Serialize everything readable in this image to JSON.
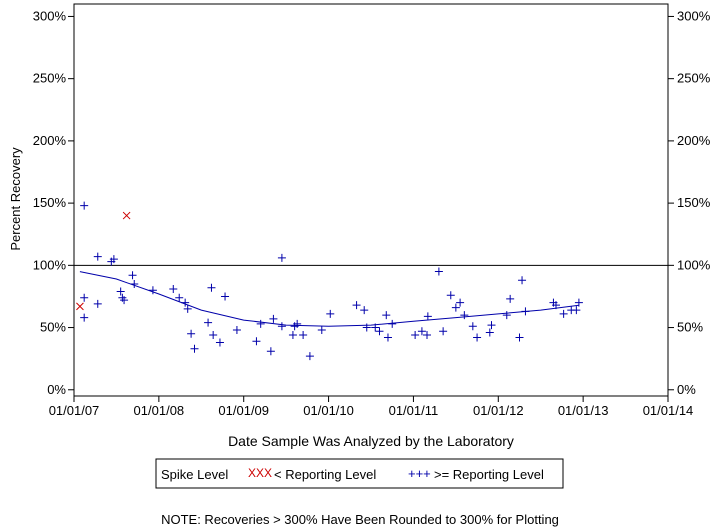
{
  "chart_data": {
    "type": "scatter",
    "title": "",
    "xlabel": "Date Sample Was Analyzed by the Laboratory",
    "ylabel": "Percent Recovery",
    "xlim": [
      2007.0,
      2014.0
    ],
    "ylim": [
      -5,
      310
    ],
    "x_ticks": [
      2007,
      2008,
      2009,
      2010,
      2011,
      2012,
      2013,
      2014
    ],
    "x_tick_labels": [
      "01/01/07",
      "01/01/08",
      "01/01/09",
      "01/01/10",
      "01/01/11",
      "01/01/12",
      "01/01/13",
      "01/01/14"
    ],
    "y_ticks": [
      0,
      50,
      100,
      150,
      200,
      250,
      300
    ],
    "y_tick_labels": [
      "0%",
      "50%",
      "100%",
      "150%",
      "200%",
      "250%",
      "300%"
    ],
    "reference_line": 100,
    "legend": {
      "title": "Spike Level",
      "below_label": "< Reporting Level",
      "above_label": ">= Reporting Level",
      "below_symbol": "XXX",
      "above_symbol": "+++"
    },
    "note": "NOTE: Recoveries > 300% Have Been Rounded to 300% for Plotting",
    "series": [
      {
        "name": "< Reporting Level",
        "color": "#cc0000",
        "marker": "x",
        "points": [
          [
            2007.07,
            67
          ],
          [
            2007.62,
            140
          ]
        ]
      },
      {
        "name": ">= Reporting Level",
        "color": "#0000aa",
        "marker": "+",
        "points": [
          [
            2007.12,
            148
          ],
          [
            2007.12,
            74
          ],
          [
            2007.12,
            58
          ],
          [
            2007.28,
            107
          ],
          [
            2007.28,
            69
          ],
          [
            2007.44,
            103
          ],
          [
            2007.47,
            105
          ],
          [
            2007.55,
            79
          ],
          [
            2007.57,
            74
          ],
          [
            2007.59,
            72
          ],
          [
            2007.69,
            92
          ],
          [
            2007.71,
            85
          ],
          [
            2007.93,
            80
          ],
          [
            2008.17,
            81
          ],
          [
            2008.24,
            74
          ],
          [
            2008.31,
            70
          ],
          [
            2008.34,
            65
          ],
          [
            2008.38,
            45
          ],
          [
            2008.42,
            33
          ],
          [
            2008.58,
            54
          ],
          [
            2008.62,
            82
          ],
          [
            2008.64,
            44
          ],
          [
            2008.72,
            38
          ],
          [
            2008.78,
            75
          ],
          [
            2008.92,
            48
          ],
          [
            2009.15,
            39
          ],
          [
            2009.2,
            53
          ],
          [
            2009.32,
            31
          ],
          [
            2009.35,
            57
          ],
          [
            2009.45,
            106
          ],
          [
            2009.45,
            51
          ],
          [
            2009.58,
            44
          ],
          [
            2009.6,
            51
          ],
          [
            2009.63,
            53
          ],
          [
            2009.7,
            44
          ],
          [
            2009.78,
            27
          ],
          [
            2009.92,
            48
          ],
          [
            2010.02,
            61
          ],
          [
            2010.33,
            68
          ],
          [
            2010.42,
            64
          ],
          [
            2010.45,
            50
          ],
          [
            2010.55,
            50
          ],
          [
            2010.6,
            47
          ],
          [
            2010.68,
            60
          ],
          [
            2010.7,
            42
          ],
          [
            2010.75,
            53
          ],
          [
            2011.02,
            44
          ],
          [
            2011.1,
            47
          ],
          [
            2011.16,
            44
          ],
          [
            2011.17,
            59
          ],
          [
            2011.3,
            95
          ],
          [
            2011.35,
            47
          ],
          [
            2011.44,
            76
          ],
          [
            2011.5,
            66
          ],
          [
            2011.55,
            70
          ],
          [
            2011.6,
            60
          ],
          [
            2011.7,
            51
          ],
          [
            2011.75,
            42
          ],
          [
            2011.9,
            46
          ],
          [
            2011.92,
            52
          ],
          [
            2012.1,
            60
          ],
          [
            2012.14,
            73
          ],
          [
            2012.25,
            42
          ],
          [
            2012.28,
            88
          ],
          [
            2012.32,
            63
          ],
          [
            2012.65,
            70
          ],
          [
            2012.68,
            68
          ],
          [
            2012.77,
            61
          ],
          [
            2012.86,
            64
          ],
          [
            2012.92,
            64
          ],
          [
            2012.95,
            70
          ]
        ]
      }
    ],
    "trend": {
      "name": "smoothed fit",
      "color": "#0000aa",
      "points": [
        [
          2007.07,
          95
        ],
        [
          2007.5,
          89
        ],
        [
          2008.0,
          77
        ],
        [
          2008.5,
          64
        ],
        [
          2009.0,
          56
        ],
        [
          2009.5,
          52
        ],
        [
          2010.0,
          51
        ],
        [
          2010.5,
          52
        ],
        [
          2011.0,
          55
        ],
        [
          2011.5,
          58
        ],
        [
          2012.0,
          61
        ],
        [
          2012.5,
          64
        ],
        [
          2012.95,
          68
        ]
      ]
    }
  }
}
